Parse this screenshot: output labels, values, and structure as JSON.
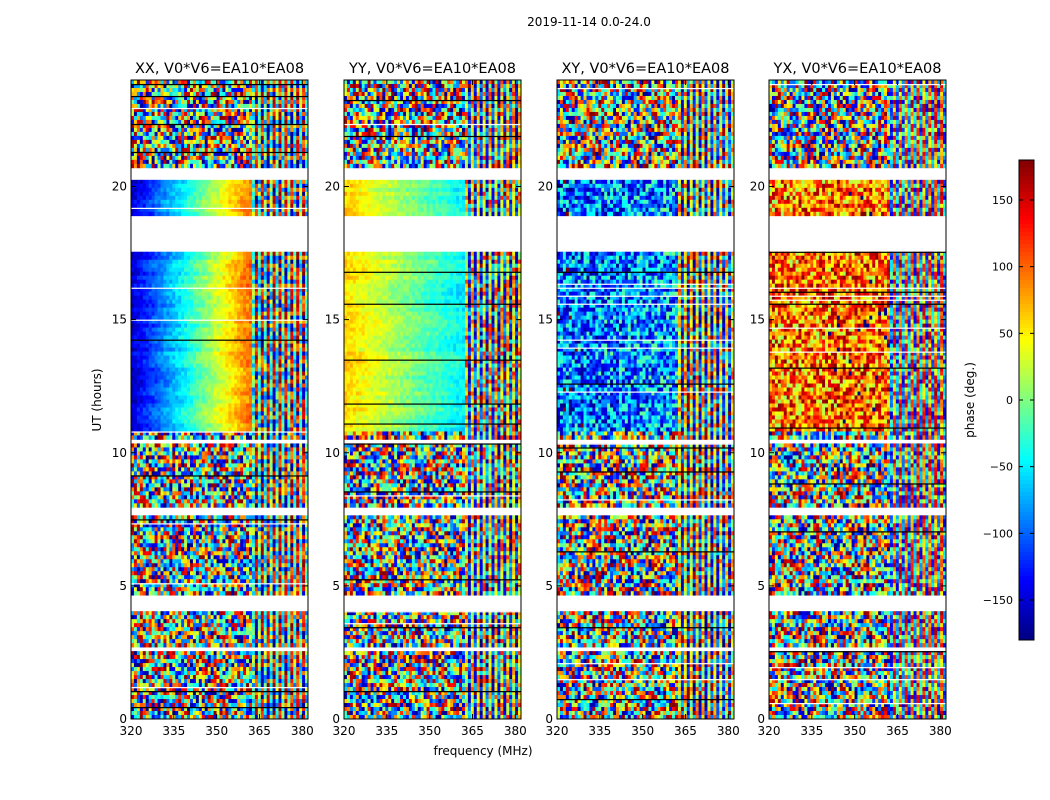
{
  "figure": {
    "suptitle": "2019-11-14 0.0-24.0",
    "xlabel": "frequency (MHz)",
    "ylabel": "UT (hours)",
    "colorbar_label": "phase (deg.)"
  },
  "chart_data": {
    "type": "heatmap",
    "title": "2019-11-14 0.0-24.0",
    "xlabel": "frequency (MHz)",
    "ylabel": "UT (hours)",
    "xlim": [
      320,
      382
    ],
    "ylim": [
      0,
      24
    ],
    "x_ticks": [
      320,
      335,
      350,
      365,
      380
    ],
    "y_ticks": [
      0,
      5,
      10,
      15,
      20
    ],
    "colorbar": {
      "label": "phase (deg.)",
      "range": [
        -180,
        180
      ],
      "ticks": [
        150,
        100,
        50,
        0,
        -50,
        -100,
        -150
      ],
      "tick_labels": [
        "150",
        "100",
        "50",
        "0",
        "−50",
        "−100",
        "−150"
      ],
      "colormap": "jet",
      "colors": [
        "#00007f",
        "#0000ff",
        "#007fff",
        "#00ffff",
        "#7fff7f",
        "#ffff00",
        "#ff7f00",
        "#ff0000",
        "#7f0000"
      ]
    },
    "panels": [
      {
        "title": "XX, V0*V6=EA10*EA08",
        "mode": "smooth",
        "base_phase": -155,
        "slope": 6.0,
        "edge_phase": 150
      },
      {
        "title": "YY, V0*V6=EA10*EA08",
        "mode": "smooth",
        "base_phase": 60,
        "slope": -2.6,
        "edge_phase": -120
      },
      {
        "title": "XY, V0*V6=EA10*EA08",
        "mode": "noisy",
        "base_phase": -100,
        "slope": 0.5,
        "edge_phase": -130
      },
      {
        "title": "YX, V0*V6=EA10*EA08",
        "mode": "noisy",
        "base_phase": 90,
        "slope": 0.3,
        "edge_phase": 100
      }
    ],
    "data_gaps_hours": [
      [
        17.6,
        18.9
      ],
      [
        20.2,
        20.7
      ],
      [
        7.6,
        7.9
      ],
      [
        4.1,
        4.6
      ],
      [
        10.3,
        10.5
      ],
      [
        0.45,
        0.5
      ],
      [
        2.55,
        2.65
      ]
    ],
    "strong_signal_hours": [
      [
        10.8,
        17.6
      ],
      [
        18.9,
        20.2
      ]
    ],
    "channel_edge_mhz": 362
  }
}
